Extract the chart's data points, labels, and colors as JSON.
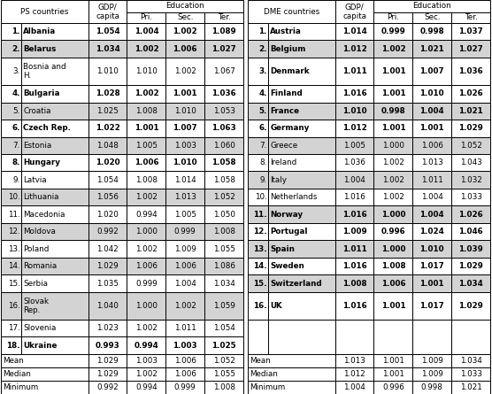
{
  "ps_countries": [
    {
      "num": "1.",
      "name": "Albania",
      "gdp": "1.054",
      "pri": "1.004",
      "sec": "1.002",
      "ter": "1.089",
      "bold": true,
      "tall": false
    },
    {
      "num": "2.",
      "name": "Belarus",
      "gdp": "1.034",
      "pri": "1.002",
      "sec": "1.006",
      "ter": "1.027",
      "bold": true,
      "tall": false
    },
    {
      "num": "3.",
      "name": "Bosnia and\nH.",
      "gdp": "1.010",
      "pri": "1.010",
      "sec": "1.002",
      "ter": "1.067",
      "bold": false,
      "tall": true
    },
    {
      "num": "4.",
      "name": "Bulgaria",
      "gdp": "1.028",
      "pri": "1.002",
      "sec": "1.001",
      "ter": "1.036",
      "bold": true,
      "tall": false
    },
    {
      "num": "5.",
      "name": "Croatia",
      "gdp": "1.025",
      "pri": "1.008",
      "sec": "1.010",
      "ter": "1.053",
      "bold": false,
      "tall": false
    },
    {
      "num": "6.",
      "name": "Czech Rep.",
      "gdp": "1.022",
      "pri": "1.001",
      "sec": "1.007",
      "ter": "1.063",
      "bold": true,
      "tall": false
    },
    {
      "num": "7.",
      "name": "Estonia",
      "gdp": "1.048",
      "pri": "1.005",
      "sec": "1.003",
      "ter": "1.060",
      "bold": false,
      "tall": false
    },
    {
      "num": "8.",
      "name": "Hungary",
      "gdp": "1.020",
      "pri": "1.006",
      "sec": "1.010",
      "ter": "1.058",
      "bold": true,
      "tall": false
    },
    {
      "num": "9.",
      "name": "Latvia",
      "gdp": "1.054",
      "pri": "1.008",
      "sec": "1.014",
      "ter": "1.058",
      "bold": false,
      "tall": false
    },
    {
      "num": "10.",
      "name": "Lithuania",
      "gdp": "1.056",
      "pri": "1.002",
      "sec": "1.013",
      "ter": "1.052",
      "bold": false,
      "tall": false
    },
    {
      "num": "11.",
      "name": "Macedonia",
      "gdp": "1.020",
      "pri": "0.994",
      "sec": "1.005",
      "ter": "1.050",
      "bold": false,
      "tall": false
    },
    {
      "num": "12.",
      "name": "Moldova",
      "gdp": "0.992",
      "pri": "1.000",
      "sec": "0.999",
      "ter": "1.008",
      "bold": false,
      "tall": false
    },
    {
      "num": "13.",
      "name": "Poland",
      "gdp": "1.042",
      "pri": "1.002",
      "sec": "1.009",
      "ter": "1.055",
      "bold": false,
      "tall": false
    },
    {
      "num": "14.",
      "name": "Romania",
      "gdp": "1.029",
      "pri": "1.006",
      "sec": "1.006",
      "ter": "1.086",
      "bold": false,
      "tall": false
    },
    {
      "num": "15.",
      "name": "Serbia",
      "gdp": "1.035",
      "pri": "0.999",
      "sec": "1.004",
      "ter": "1.034",
      "bold": false,
      "tall": false
    },
    {
      "num": "16.",
      "name": "Slovak\nRep.",
      "gdp": "1.040",
      "pri": "1.000",
      "sec": "1.002",
      "ter": "1.059",
      "bold": false,
      "tall": true
    },
    {
      "num": "17.",
      "name": "Slovenia",
      "gdp": "1.023",
      "pri": "1.002",
      "sec": "1.011",
      "ter": "1.054",
      "bold": false,
      "tall": false
    },
    {
      "num": "18.",
      "name": "Ukraine",
      "gdp": "0.993",
      "pri": "0.994",
      "sec": "1.003",
      "ter": "1.025",
      "bold": true,
      "tall": false
    }
  ],
  "ps_stats": [
    {
      "label": "Mean",
      "gdp": "1.029",
      "pri": "1.003",
      "sec": "1.006",
      "ter": "1.052"
    },
    {
      "label": "Median",
      "gdp": "1.029",
      "pri": "1.002",
      "sec": "1.006",
      "ter": "1.055"
    },
    {
      "label": "Minimum",
      "gdp": "0.992",
      "pri": "0.994",
      "sec": "0.999",
      "ter": "1.008"
    }
  ],
  "dme_countries": [
    {
      "num": "1.",
      "name": "Austria",
      "gdp": "1.014",
      "pri": "0.999",
      "sec": "0.998",
      "ter": "1.037",
      "bold": true,
      "tall": false
    },
    {
      "num": "2.",
      "name": "Belgium",
      "gdp": "1.012",
      "pri": "1.002",
      "sec": "1.021",
      "ter": "1.027",
      "bold": true,
      "tall": false
    },
    {
      "num": "3.",
      "name": "Denmark",
      "gdp": "1.011",
      "pri": "1.001",
      "sec": "1.007",
      "ter": "1.036",
      "bold": true,
      "tall": true
    },
    {
      "num": "4.",
      "name": "Finland",
      "gdp": "1.016",
      "pri": "1.001",
      "sec": "1.010",
      "ter": "1.026",
      "bold": true,
      "tall": false
    },
    {
      "num": "5.",
      "name": "France",
      "gdp": "1.010",
      "pri": "0.998",
      "sec": "1.004",
      "ter": "1.021",
      "bold": true,
      "tall": false
    },
    {
      "num": "6.",
      "name": "Germany",
      "gdp": "1.012",
      "pri": "1.001",
      "sec": "1.001",
      "ter": "1.029",
      "bold": true,
      "tall": false
    },
    {
      "num": "7.",
      "name": "Greece",
      "gdp": "1.005",
      "pri": "1.000",
      "sec": "1.006",
      "ter": "1.052",
      "bold": false,
      "tall": false
    },
    {
      "num": "8.",
      "name": "Ireland",
      "gdp": "1.036",
      "pri": "1.002",
      "sec": "1.013",
      "ter": "1.043",
      "bold": false,
      "tall": false
    },
    {
      "num": "9.",
      "name": "Italy",
      "gdp": "1.004",
      "pri": "1.002",
      "sec": "1.011",
      "ter": "1.032",
      "bold": false,
      "tall": false
    },
    {
      "num": "10.",
      "name": "Netherlands",
      "gdp": "1.016",
      "pri": "1.002",
      "sec": "1.004",
      "ter": "1.033",
      "bold": false,
      "tall": false
    },
    {
      "num": "11.",
      "name": "Norway",
      "gdp": "1.016",
      "pri": "1.000",
      "sec": "1.004",
      "ter": "1.026",
      "bold": true,
      "tall": false
    },
    {
      "num": "12.",
      "name": "Portugal",
      "gdp": "1.009",
      "pri": "0.996",
      "sec": "1.024",
      "ter": "1.046",
      "bold": true,
      "tall": false
    },
    {
      "num": "13.",
      "name": "Spain",
      "gdp": "1.011",
      "pri": "1.000",
      "sec": "1.010",
      "ter": "1.039",
      "bold": true,
      "tall": false
    },
    {
      "num": "14.",
      "name": "Sweden",
      "gdp": "1.016",
      "pri": "1.008",
      "sec": "1.017",
      "ter": "1.029",
      "bold": true,
      "tall": false
    },
    {
      "num": "15.",
      "name": "Switzerland",
      "gdp": "1.008",
      "pri": "1.006",
      "sec": "1.001",
      "ter": "1.034",
      "bold": true,
      "tall": false
    },
    {
      "num": "16.",
      "name": "UK",
      "gdp": "1.016",
      "pri": "1.001",
      "sec": "1.017",
      "ter": "1.029",
      "bold": true,
      "tall": true
    }
  ],
  "dme_stats": [
    {
      "label": "Mean",
      "gdp": "1.013",
      "pri": "1.001",
      "sec": "1.009",
      "ter": "1.034"
    },
    {
      "label": "Median",
      "gdp": "1.012",
      "pri": "1.001",
      "sec": "1.009",
      "ter": "1.033"
    },
    {
      "label": "Minimum",
      "gdp": "1.004",
      "pri": "0.996",
      "sec": "0.998",
      "ter": "1.021"
    }
  ],
  "shaded_rows_ps": [
    2,
    5,
    7,
    10,
    12,
    14,
    16
  ],
  "shaded_rows_dme": [
    2,
    5,
    7,
    9,
    11,
    13,
    15
  ],
  "bg_color": "#ffffff",
  "shade_color": "#d3d3d3",
  "border_color": "#000000",
  "text_color": "#000000",
  "fig_w": 5.56,
  "fig_h": 4.45,
  "dpi": 100
}
